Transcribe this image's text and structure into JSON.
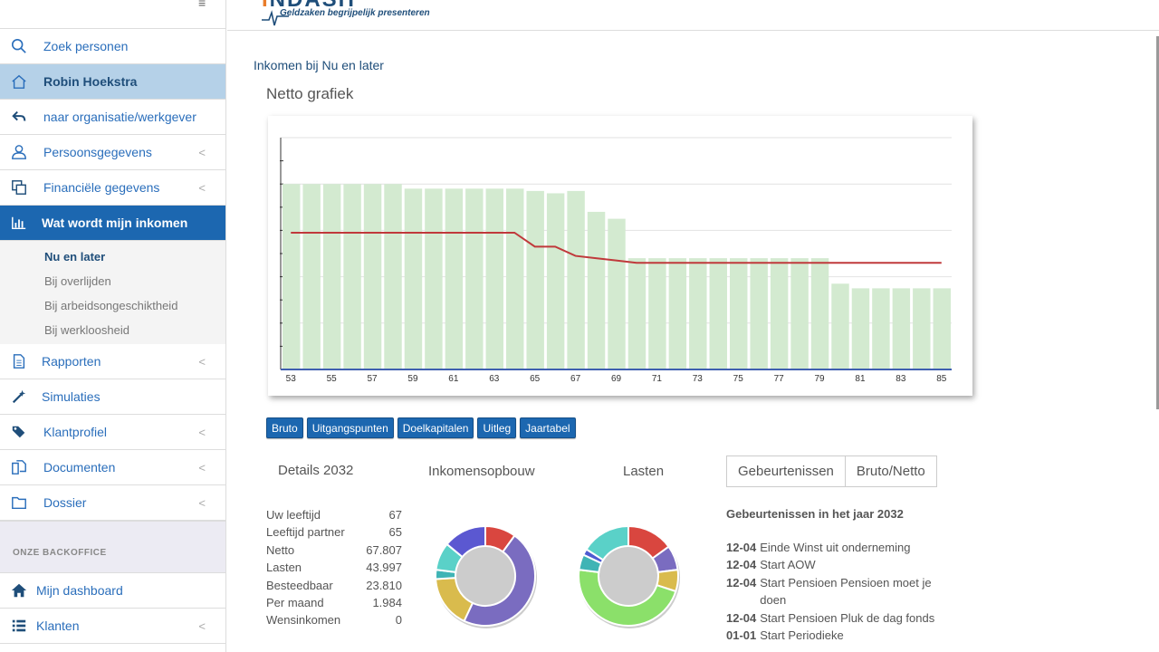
{
  "sidebar": {
    "menu_icon": "menu-icon",
    "items": [
      {
        "label": "Zoek personen",
        "icon": "search-icon"
      },
      {
        "label": "Robin Hoekstra",
        "icon": "home-icon"
      },
      {
        "label": "naar organisatie/werkgever",
        "icon": "reply-icon"
      },
      {
        "label": "Persoonsgegevens",
        "icon": "user-icon"
      },
      {
        "label": "Financiële gegevens",
        "icon": "copy-icon"
      },
      {
        "label": "Wat wordt mijn inkomen",
        "icon": "bar-chart-icon"
      }
    ],
    "submenu": [
      "Nu en later",
      "Bij overlijden",
      "Bij arbeidsongeschiktheid",
      "Bij werkloosheid"
    ],
    "items2": [
      {
        "label": "Rapporten",
        "icon": "document-icon"
      },
      {
        "label": "Simulaties",
        "icon": "magic-icon"
      },
      {
        "label": "Klantprofiel",
        "icon": "tags-icon"
      },
      {
        "label": "Documenten",
        "icon": "files-icon"
      },
      {
        "label": "Dossier",
        "icon": "folder-icon"
      }
    ],
    "section_label": "ONZE BACKOFFICE",
    "items3": [
      {
        "label": "Mijn dashboard",
        "icon": "home-icon"
      },
      {
        "label": "Klanten",
        "icon": "list-icon"
      }
    ],
    "chevron": "<"
  },
  "header": {
    "logo_tagline": "Geldzaken begrijpelijk presenteren"
  },
  "main": {
    "page_title": "Inkomen bij Nu en later",
    "chart_title": "Netto grafiek",
    "buttons": [
      "Bruto",
      "Uitgangspunten",
      "Doelkapitalen",
      "Uitleg",
      "Jaartabel"
    ],
    "details_title": "Details 2032",
    "inkomen_title": "Inkomensopbouw",
    "lasten_title": "Lasten",
    "tabs": [
      "Gebeurtenissen",
      "Bruto/Netto"
    ],
    "details": [
      {
        "label": "Uw leeftijd",
        "value": "67"
      },
      {
        "label": "Leeftijd partner",
        "value": "65"
      },
      {
        "label": "Netto",
        "value": "67.807"
      },
      {
        "label": "Lasten",
        "value": "43.997"
      },
      {
        "label": "Besteedbaar",
        "value": "23.810"
      },
      {
        "label": "Per maand",
        "value": "1.984"
      },
      {
        "label": "Wensinkomen",
        "value": "0"
      }
    ],
    "events_title": "Gebeurtenissen in het jaar 2032",
    "events": [
      {
        "date": "12-04",
        "text": "Einde Winst uit onderneming"
      },
      {
        "date": "12-04",
        "text": "Start AOW"
      },
      {
        "date": "12-04",
        "text": "Start Pensioen Pensioen moet je doen"
      },
      {
        "date": "12-04",
        "text": "Start Pensioen Pluk de dag fonds"
      },
      {
        "date": "01-01",
        "text": "Start Periodieke"
      }
    ]
  },
  "chart_data": {
    "type": "bar",
    "title": "Netto grafiek",
    "x": [
      53,
      54,
      55,
      56,
      57,
      58,
      59,
      60,
      61,
      62,
      63,
      64,
      65,
      66,
      67,
      68,
      69,
      70,
      71,
      72,
      73,
      74,
      75,
      76,
      77,
      78,
      79,
      80,
      81,
      82,
      83,
      84,
      85
    ],
    "tick_labels": [
      "53",
      "55",
      "57",
      "59",
      "61",
      "63",
      "65",
      "67",
      "69",
      "71",
      "73",
      "75",
      "77",
      "79",
      "81",
      "83",
      "85"
    ],
    "series": [
      {
        "type": "bar",
        "values": [
          8.0,
          8.0,
          8.0,
          8.0,
          8.0,
          8.0,
          7.8,
          7.8,
          7.8,
          7.8,
          7.8,
          7.8,
          7.7,
          7.6,
          7.7,
          6.8,
          6.5,
          4.8,
          4.8,
          4.8,
          4.8,
          4.8,
          4.8,
          4.8,
          4.8,
          4.8,
          4.8,
          3.7,
          3.5,
          3.5,
          3.5,
          3.5,
          3.5
        ],
        "color": "#d3ead0"
      },
      {
        "type": "line",
        "values": [
          5.9,
          5.9,
          5.9,
          5.9,
          5.9,
          5.9,
          5.9,
          5.9,
          5.9,
          5.9,
          5.9,
          5.9,
          5.3,
          5.3,
          4.9,
          4.8,
          4.7,
          4.6,
          4.6,
          4.6,
          4.6,
          4.6,
          4.6,
          4.6,
          4.6,
          4.6,
          4.6,
          4.6,
          4.6,
          4.6,
          4.6,
          4.6,
          4.6
        ],
        "color": "#c0393b"
      }
    ],
    "ylim": [
      0,
      10
    ],
    "grid": true,
    "donuts": [
      {
        "name": "Inkomensopbouw",
        "slices": [
          {
            "value": 10,
            "color": "#d9463f"
          },
          {
            "value": 47,
            "color": "#7a6cc0"
          },
          {
            "value": 17,
            "color": "#d9bb4d"
          },
          {
            "value": 3,
            "color": "#3fb4b5"
          },
          {
            "value": 9,
            "color": "#5ad1c8"
          },
          {
            "value": 14,
            "color": "#5b58d1"
          }
        ]
      },
      {
        "name": "Lasten",
        "slices": [
          {
            "value": 15,
            "color": "#d9463f"
          },
          {
            "value": 8,
            "color": "#7a6cc0"
          },
          {
            "value": 7,
            "color": "#d9bb4d"
          },
          {
            "value": 47,
            "color": "#8be06a"
          },
          {
            "value": 5,
            "color": "#3fb4b5"
          },
          {
            "value": 2,
            "color": "#4e5bd1"
          },
          {
            "value": 16,
            "color": "#5ad1c8"
          }
        ]
      }
    ]
  }
}
